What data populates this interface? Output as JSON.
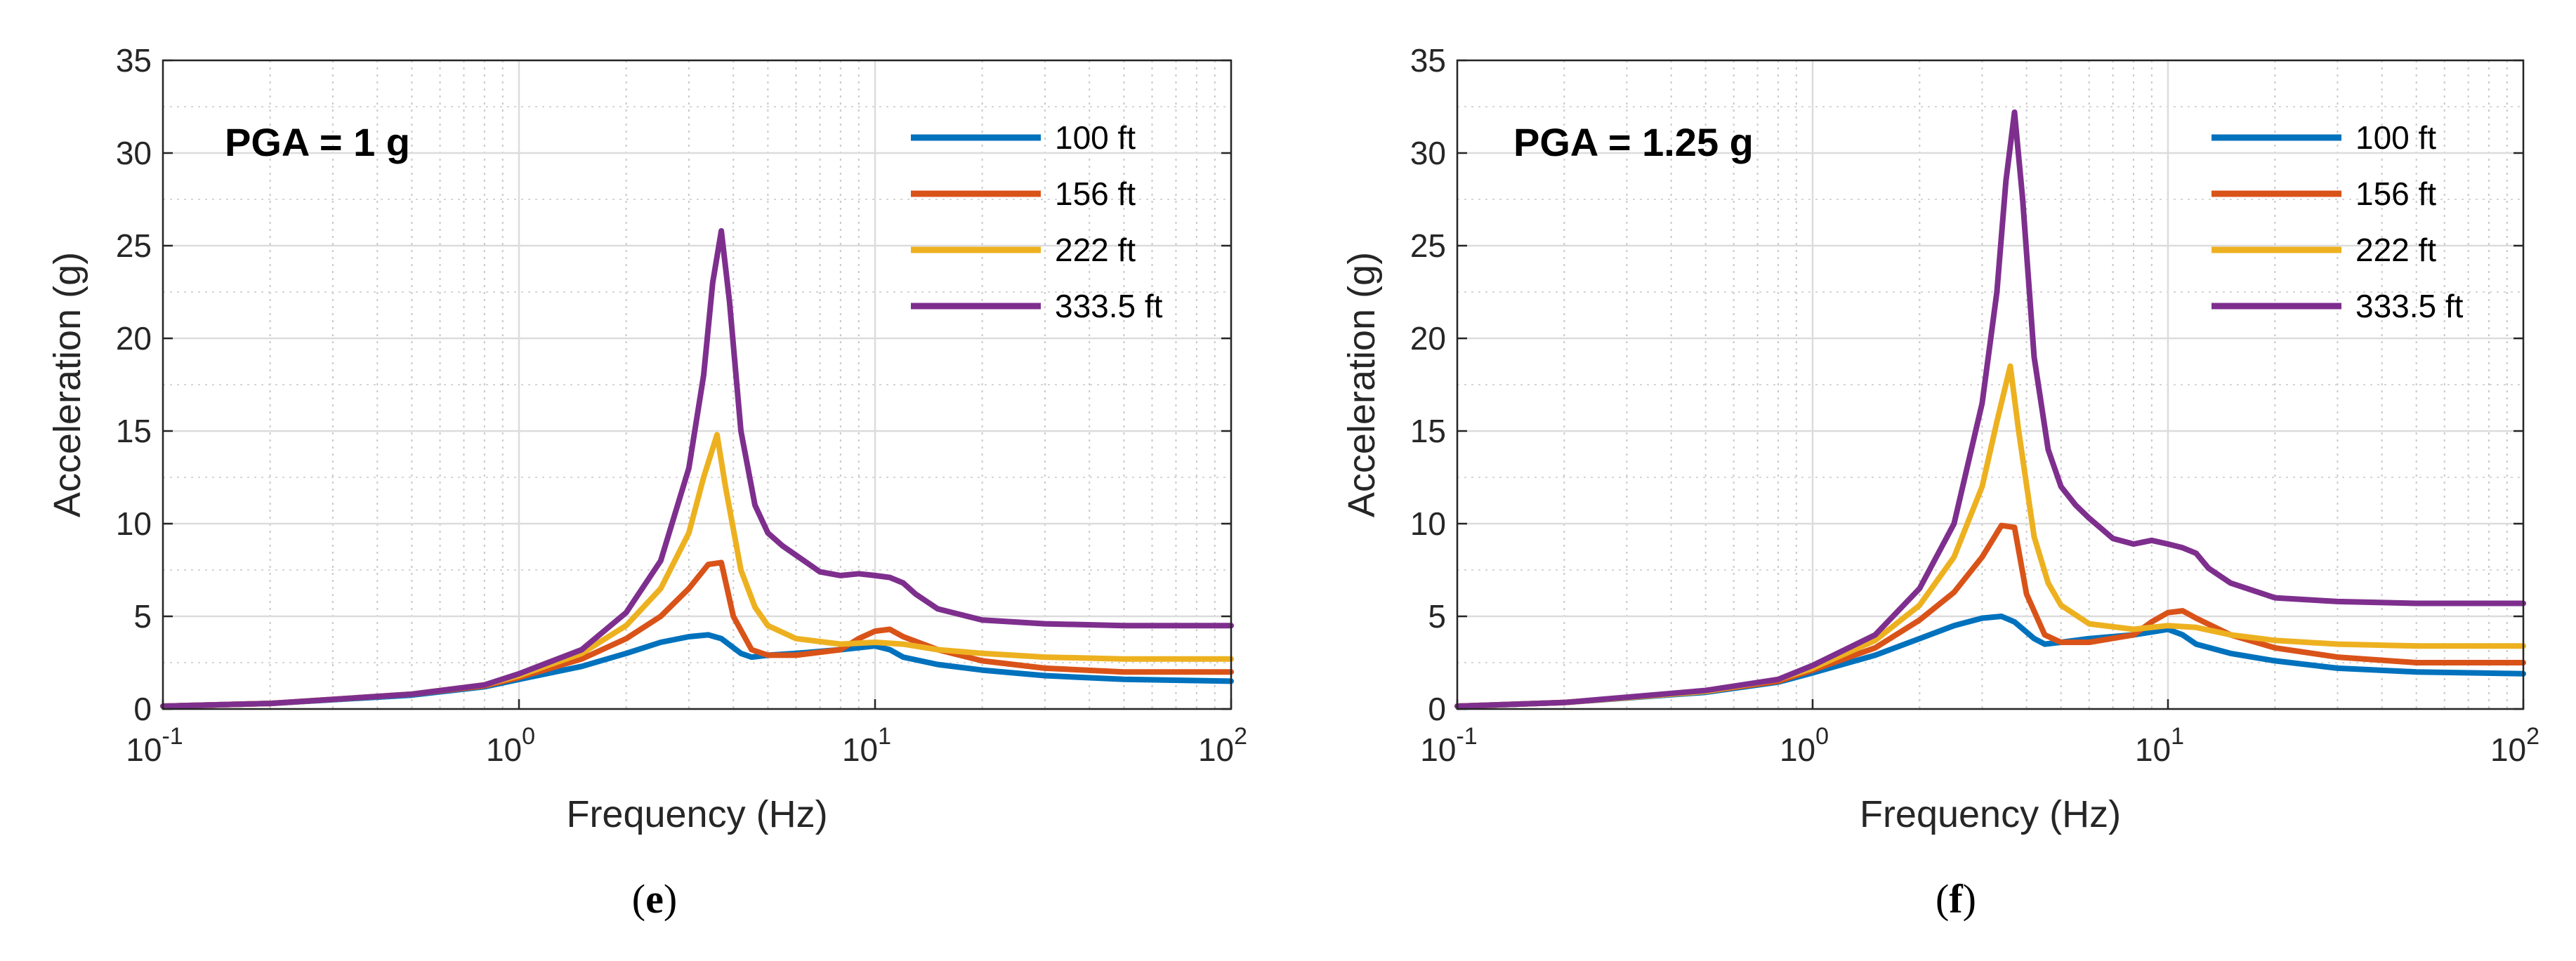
{
  "chart_data": [
    {
      "type": "line",
      "panel_label": "e",
      "annotation": "PGA = 1 g",
      "xlabel": "Frequency (Hz)",
      "ylabel": "Acceleration (g)",
      "xscale": "log",
      "xlim": [
        0.1,
        100
      ],
      "ylim": [
        0,
        35
      ],
      "yticks": [
        "0",
        "5",
        "10",
        "15",
        "20",
        "25",
        "30",
        "35"
      ],
      "xticks": [
        {
          "base": "10",
          "exp": "-1"
        },
        {
          "base": "10",
          "exp": "0"
        },
        {
          "base": "10",
          "exp": "1"
        },
        {
          "base": "10",
          "exp": "2"
        }
      ],
      "grid": true,
      "legend_position": "top-right",
      "series": [
        {
          "name": "100 ft",
          "color": "#0072BD",
          "x": [
            0.1,
            0.2,
            0.5,
            0.8,
            1.0,
            1.5,
            2.0,
            2.5,
            3.0,
            3.4,
            3.7,
            4.2,
            4.5,
            5.0,
            6.0,
            8.0,
            10.0,
            11.0,
            12.0,
            15.0,
            20.0,
            30.0,
            50.0,
            100.0
          ],
          "y": [
            0.15,
            0.3,
            0.75,
            1.2,
            1.6,
            2.3,
            3.0,
            3.6,
            3.9,
            4.0,
            3.8,
            3.0,
            2.8,
            2.9,
            3.0,
            3.2,
            3.4,
            3.2,
            2.8,
            2.4,
            2.1,
            1.8,
            1.6,
            1.5
          ]
        },
        {
          "name": "156 ft",
          "color": "#D95319",
          "x": [
            0.1,
            0.2,
            0.5,
            0.8,
            1.0,
            1.5,
            2.0,
            2.5,
            3.0,
            3.4,
            3.7,
            4.0,
            4.5,
            5.0,
            6.0,
            8.0,
            9.0,
            10.0,
            11.0,
            12.0,
            15.0,
            20.0,
            30.0,
            50.0,
            100.0
          ],
          "y": [
            0.15,
            0.3,
            0.8,
            1.25,
            1.7,
            2.7,
            3.8,
            5.0,
            6.5,
            7.8,
            7.9,
            5.0,
            3.2,
            2.9,
            2.9,
            3.2,
            3.8,
            4.2,
            4.3,
            3.9,
            3.2,
            2.6,
            2.2,
            2.0,
            2.0
          ]
        },
        {
          "name": "222 ft",
          "color": "#EDB120",
          "x": [
            0.1,
            0.2,
            0.5,
            0.8,
            1.0,
            1.5,
            2.0,
            2.5,
            3.0,
            3.3,
            3.6,
            3.8,
            4.2,
            4.6,
            5.0,
            6.0,
            8.0,
            10.0,
            12.0,
            15.0,
            20.0,
            30.0,
            50.0,
            100.0
          ],
          "y": [
            0.15,
            0.3,
            0.8,
            1.3,
            1.8,
            3.0,
            4.5,
            6.5,
            9.5,
            12.5,
            14.8,
            12.0,
            7.5,
            5.5,
            4.5,
            3.8,
            3.5,
            3.6,
            3.5,
            3.2,
            3.0,
            2.8,
            2.7,
            2.7
          ]
        },
        {
          "name": "333.5 ft",
          "color": "#7E2F8E",
          "x": [
            0.1,
            0.2,
            0.5,
            0.8,
            1.0,
            1.5,
            2.0,
            2.5,
            3.0,
            3.3,
            3.5,
            3.7,
            3.9,
            4.2,
            4.6,
            5.0,
            5.5,
            6.0,
            7.0,
            8.0,
            9.0,
            10.0,
            11.0,
            12.0,
            13.0,
            15.0,
            20.0,
            30.0,
            50.0,
            100.0
          ],
          "y": [
            0.15,
            0.3,
            0.8,
            1.3,
            1.9,
            3.2,
            5.2,
            8.0,
            13.0,
            18.0,
            23.0,
            25.8,
            22.0,
            15.0,
            11.0,
            9.5,
            8.8,
            8.3,
            7.4,
            7.2,
            7.3,
            7.2,
            7.1,
            6.8,
            6.2,
            5.4,
            4.8,
            4.6,
            4.5,
            4.5
          ]
        }
      ]
    },
    {
      "type": "line",
      "panel_label": "f",
      "annotation": "PGA = 1.25 g",
      "xlabel": "Frequency (Hz)",
      "ylabel": "Acceleration (g)",
      "xscale": "log",
      "xlim": [
        0.1,
        100
      ],
      "ylim": [
        0,
        35
      ],
      "yticks": [
        "0",
        "5",
        "10",
        "15",
        "20",
        "25",
        "30",
        "35"
      ],
      "xticks": [
        {
          "base": "10",
          "exp": "-1"
        },
        {
          "base": "10",
          "exp": "0"
        },
        {
          "base": "10",
          "exp": "1"
        },
        {
          "base": "10",
          "exp": "2"
        }
      ],
      "grid": true,
      "legend_position": "top-right",
      "series": [
        {
          "name": "100 ft",
          "color": "#0072BD",
          "x": [
            0.1,
            0.2,
            0.5,
            0.8,
            1.0,
            1.5,
            2.0,
            2.5,
            3.0,
            3.4,
            3.7,
            4.2,
            4.5,
            5.0,
            6.0,
            8.0,
            10.0,
            11.0,
            12.0,
            15.0,
            20.0,
            30.0,
            50.0,
            100.0
          ],
          "y": [
            0.15,
            0.35,
            0.9,
            1.45,
            1.95,
            2.9,
            3.8,
            4.5,
            4.9,
            5.0,
            4.7,
            3.8,
            3.5,
            3.6,
            3.8,
            4.0,
            4.3,
            4.0,
            3.5,
            3.0,
            2.6,
            2.2,
            2.0,
            1.9
          ]
        },
        {
          "name": "156 ft",
          "color": "#D95319",
          "x": [
            0.1,
            0.2,
            0.5,
            0.8,
            1.0,
            1.5,
            2.0,
            2.5,
            3.0,
            3.4,
            3.7,
            4.0,
            4.5,
            5.0,
            6.0,
            8.0,
            9.0,
            10.0,
            11.0,
            12.0,
            15.0,
            20.0,
            30.0,
            50.0,
            100.0
          ],
          "y": [
            0.15,
            0.35,
            0.95,
            1.5,
            2.1,
            3.3,
            4.8,
            6.3,
            8.2,
            9.9,
            9.8,
            6.2,
            4.0,
            3.6,
            3.6,
            4.0,
            4.7,
            5.2,
            5.3,
            4.9,
            4.0,
            3.3,
            2.8,
            2.5,
            2.5
          ]
        },
        {
          "name": "222 ft",
          "color": "#EDB120",
          "x": [
            0.1,
            0.2,
            0.5,
            0.8,
            1.0,
            1.5,
            2.0,
            2.5,
            3.0,
            3.3,
            3.6,
            3.8,
            4.2,
            4.6,
            5.0,
            6.0,
            8.0,
            10.0,
            12.0,
            15.0,
            20.0,
            30.0,
            50.0,
            100.0
          ],
          "y": [
            0.15,
            0.35,
            0.95,
            1.6,
            2.2,
            3.7,
            5.6,
            8.2,
            12.0,
            15.5,
            18.5,
            15.0,
            9.3,
            6.8,
            5.6,
            4.6,
            4.3,
            4.5,
            4.4,
            4.0,
            3.7,
            3.5,
            3.4,
            3.4
          ]
        },
        {
          "name": "333.5 ft",
          "color": "#7E2F8E",
          "x": [
            0.1,
            0.2,
            0.5,
            0.8,
            1.0,
            1.5,
            2.0,
            2.5,
            3.0,
            3.3,
            3.5,
            3.7,
            3.9,
            4.2,
            4.6,
            5.0,
            5.5,
            6.0,
            7.0,
            8.0,
            9.0,
            10.0,
            11.0,
            12.0,
            13.0,
            15.0,
            20.0,
            30.0,
            50.0,
            100.0
          ],
          "y": [
            0.15,
            0.35,
            1.0,
            1.6,
            2.35,
            4.0,
            6.5,
            10.0,
            16.5,
            22.5,
            28.5,
            32.2,
            27.5,
            19.0,
            14.0,
            12.0,
            11.0,
            10.3,
            9.2,
            8.9,
            9.1,
            8.9,
            8.7,
            8.4,
            7.6,
            6.8,
            6.0,
            5.8,
            5.7,
            5.7
          ]
        }
      ]
    }
  ]
}
